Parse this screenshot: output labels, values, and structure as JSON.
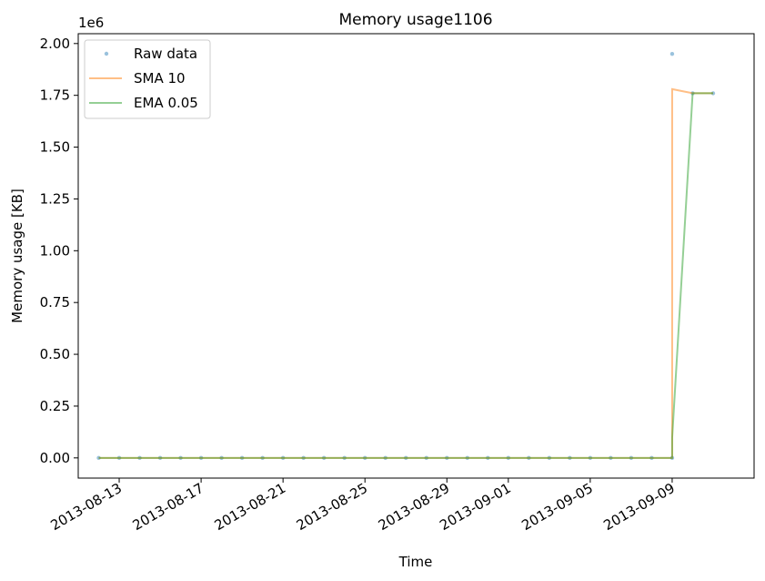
{
  "chart_data": {
    "type": "line",
    "title": "Memory usage1106",
    "xlabel": "Time",
    "ylabel": "Memory usage [KB]",
    "y_offset_label": "1e6",
    "x": [
      "2013-08-12",
      "2013-08-13",
      "2013-08-14",
      "2013-08-15",
      "2013-08-16",
      "2013-08-17",
      "2013-08-18",
      "2013-08-19",
      "2013-08-20",
      "2013-08-21",
      "2013-08-22",
      "2013-08-23",
      "2013-08-24",
      "2013-08-25",
      "2013-08-26",
      "2013-08-27",
      "2013-08-28",
      "2013-08-29",
      "2013-08-30",
      "2013-08-31",
      "2013-09-01",
      "2013-09-02",
      "2013-09-03",
      "2013-09-04",
      "2013-09-05",
      "2013-09-06",
      "2013-09-07",
      "2013-09-08",
      "2013-09-09",
      "2013-09-09",
      "2013-09-10",
      "2013-09-11"
    ],
    "series": [
      {
        "name": "Raw data",
        "style": "points",
        "color": "#1f77b4",
        "values": [
          0,
          0,
          0,
          0,
          0,
          0,
          0,
          0,
          0,
          0,
          0,
          0,
          0,
          0,
          0,
          0,
          0,
          0,
          0,
          0,
          0,
          0,
          0,
          0,
          0,
          0,
          0,
          0,
          0,
          1950000,
          1760000,
          1760000
        ]
      },
      {
        "name": "SMA 10",
        "style": "line",
        "color": "#ff7f0e",
        "values": [
          0,
          0,
          0,
          0,
          0,
          0,
          0,
          0,
          0,
          0,
          0,
          0,
          0,
          0,
          0,
          0,
          0,
          0,
          0,
          0,
          0,
          0,
          0,
          0,
          0,
          0,
          0,
          0,
          0,
          1780000,
          1760000,
          1760000
        ]
      },
      {
        "name": "EMA 0.05",
        "style": "line",
        "color": "#2ca02c",
        "values": [
          0,
          0,
          0,
          0,
          0,
          0,
          0,
          0,
          0,
          0,
          0,
          0,
          0,
          0,
          0,
          0,
          0,
          0,
          0,
          0,
          0,
          0,
          0,
          0,
          0,
          0,
          0,
          0,
          0,
          97500,
          1760000,
          1760000
        ]
      }
    ],
    "xlim": [
      "2013-08-11",
      "2013-09-13"
    ],
    "xticks": [
      "2013-08-13",
      "2013-08-17",
      "2013-08-21",
      "2013-08-25",
      "2013-08-29",
      "2013-09-01",
      "2013-09-05",
      "2013-09-09"
    ],
    "ylim": [
      -97500,
      2047500
    ],
    "yticks": [
      {
        "value": 0,
        "label": "0.00"
      },
      {
        "value": 250000,
        "label": "0.25"
      },
      {
        "value": 500000,
        "label": "0.50"
      },
      {
        "value": 750000,
        "label": "0.75"
      },
      {
        "value": 1000000,
        "label": "1.00"
      },
      {
        "value": 1250000,
        "label": "1.25"
      },
      {
        "value": 1500000,
        "label": "1.50"
      },
      {
        "value": 1750000,
        "label": "1.75"
      },
      {
        "value": 2000000,
        "label": "2.00"
      }
    ],
    "legend": "upper left"
  }
}
